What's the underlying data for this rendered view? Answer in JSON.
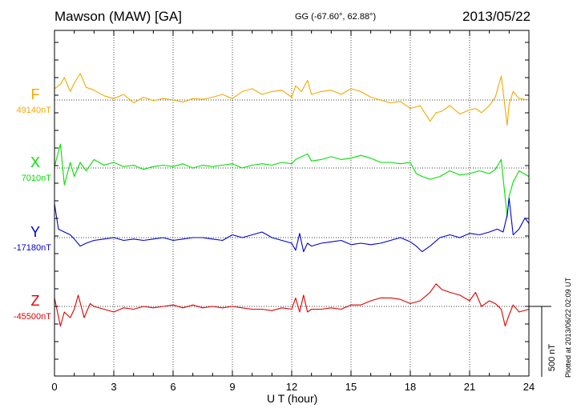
{
  "header": {
    "title": "Mawson (MAW)  [GA]",
    "coords": "GG (-67.60°,  62.88°)",
    "date": "2013/05/22"
  },
  "footer": {
    "plotted_note": "Plotted at 2013/06/22 02:09 UT"
  },
  "colors": {
    "F": "#f5a800",
    "X": "#00e000",
    "Y": "#0000d0",
    "Z": "#e00000",
    "axis": "#000000",
    "grid": "#000000"
  },
  "chart_data": {
    "type": "line",
    "title": "Mawson (MAW)  [GA]",
    "xlabel": "U T (hour)",
    "ylabel": "",
    "xlim": [
      0,
      24
    ],
    "x_ticks": [
      0,
      3,
      6,
      9,
      12,
      15,
      18,
      21,
      24
    ],
    "scale_label": "500 nT",
    "scale_nT": 500,
    "grid": "dotted",
    "series": [
      {
        "name": "F",
        "baseline_label": "49140nT",
        "x": [
          0,
          0.3,
          0.5,
          0.8,
          1.0,
          1.3,
          1.6,
          2.0,
          2.5,
          3.0,
          3.5,
          4.0,
          4.5,
          5.0,
          5.5,
          6.0,
          6.5,
          7.0,
          7.5,
          8.0,
          8.5,
          9.0,
          9.5,
          10.0,
          10.5,
          11.0,
          11.5,
          12.0,
          12.2,
          12.5,
          12.8,
          13.0,
          13.5,
          14.0,
          14.5,
          15.0,
          15.5,
          16.0,
          16.5,
          17.0,
          17.5,
          18.0,
          18.5,
          19.0,
          19.3,
          19.6,
          20.0,
          20.5,
          21.0,
          21.3,
          21.6,
          22.0,
          22.3,
          22.6,
          22.9,
          23.0,
          23.2,
          23.5,
          24.0
        ],
        "values": [
          80,
          110,
          160,
          60,
          120,
          190,
          90,
          70,
          30,
          10,
          40,
          -20,
          20,
          -5,
          10,
          0,
          -15,
          10,
          5,
          20,
          40,
          10,
          60,
          80,
          40,
          60,
          70,
          20,
          100,
          60,
          140,
          40,
          60,
          70,
          40,
          80,
          60,
          20,
          0,
          -20,
          -10,
          -60,
          -40,
          -150,
          -90,
          -80,
          -40,
          -100,
          -70,
          -60,
          -90,
          -40,
          20,
          170,
          -180,
          -30,
          60,
          10,
          0
        ]
      },
      {
        "name": "X",
        "baseline_label": "7010nT",
        "x": [
          0,
          0.3,
          0.5,
          0.8,
          1.0,
          1.3,
          1.6,
          2.0,
          2.5,
          3.0,
          3.5,
          4.0,
          4.5,
          5.0,
          5.5,
          6.0,
          6.5,
          7.0,
          7.5,
          8.0,
          8.5,
          9.0,
          9.5,
          10.0,
          10.5,
          11.0,
          11.5,
          12.0,
          12.2,
          12.5,
          12.8,
          13.0,
          13.5,
          14.0,
          14.5,
          15.0,
          15.5,
          16.0,
          16.5,
          17.0,
          17.5,
          18.0,
          18.3,
          18.6,
          19.0,
          19.5,
          20.0,
          20.5,
          21.0,
          21.5,
          22.0,
          22.3,
          22.6,
          22.9,
          23.0,
          23.2,
          23.5,
          24.0
        ],
        "values": [
          10,
          170,
          -120,
          40,
          -60,
          40,
          -20,
          60,
          20,
          40,
          10,
          20,
          -10,
          10,
          20,
          10,
          30,
          0,
          20,
          10,
          20,
          30,
          0,
          20,
          30,
          20,
          40,
          30,
          60,
          80,
          100,
          50,
          60,
          80,
          60,
          70,
          90,
          70,
          40,
          40,
          30,
          40,
          -40,
          -60,
          -80,
          -60,
          -20,
          -50,
          -40,
          -20,
          -40,
          -10,
          60,
          -350,
          -200,
          -100,
          -20,
          -60
        ]
      },
      {
        "name": "Y",
        "baseline_label": "-17180nT",
        "x": [
          0,
          0.2,
          0.5,
          0.8,
          1.0,
          1.3,
          1.6,
          2.0,
          2.5,
          3.0,
          3.5,
          4.0,
          4.5,
          5.0,
          5.5,
          6.0,
          6.5,
          7.0,
          7.5,
          8.0,
          8.5,
          9.0,
          9.5,
          10.0,
          10.5,
          11.0,
          11.5,
          12.0,
          12.2,
          12.4,
          12.6,
          12.8,
          13.0,
          13.5,
          14.0,
          14.5,
          15.0,
          15.5,
          16.0,
          16.5,
          17.0,
          17.5,
          18.0,
          18.3,
          18.6,
          19.0,
          19.5,
          20.0,
          20.5,
          21.0,
          21.5,
          22.0,
          22.4,
          22.7,
          22.9,
          23.0,
          23.2,
          23.5,
          23.8,
          24.0
        ],
        "values": [
          240,
          60,
          40,
          20,
          -10,
          -60,
          -40,
          -20,
          -10,
          0,
          -20,
          -10,
          -20,
          -10,
          0,
          -20,
          -10,
          0,
          0,
          -10,
          -20,
          20,
          0,
          20,
          40,
          0,
          -20,
          -40,
          -90,
          30,
          -100,
          -40,
          -60,
          -40,
          -30,
          -20,
          -50,
          -40,
          -50,
          -40,
          -20,
          0,
          -30,
          -60,
          -100,
          -60,
          0,
          20,
          0,
          30,
          20,
          40,
          60,
          40,
          160,
          280,
          20,
          60,
          140,
          100
        ]
      },
      {
        "name": "Z",
        "baseline_label": "-45500nT",
        "x": [
          0,
          0.3,
          0.5,
          0.8,
          1.0,
          1.2,
          1.5,
          1.8,
          2.0,
          2.5,
          3.0,
          3.5,
          4.0,
          4.5,
          5.0,
          5.5,
          6.0,
          6.5,
          7.0,
          7.5,
          8.0,
          8.5,
          9.0,
          9.5,
          10.0,
          10.5,
          11.0,
          11.5,
          12.0,
          12.2,
          12.4,
          12.6,
          12.8,
          13.0,
          13.5,
          14.0,
          14.5,
          15.0,
          15.5,
          16.0,
          16.5,
          17.0,
          17.5,
          18.0,
          18.5,
          19.0,
          19.3,
          19.6,
          20.0,
          20.5,
          21.0,
          21.3,
          21.6,
          22.0,
          22.3,
          22.6,
          22.8,
          23.0,
          23.2,
          23.5,
          24.0
        ],
        "values": [
          60,
          -140,
          -40,
          -80,
          -20,
          80,
          -80,
          20,
          0,
          -20,
          -40,
          -10,
          -20,
          0,
          -10,
          0,
          10,
          -10,
          10,
          -10,
          0,
          -10,
          0,
          -10,
          -20,
          -20,
          -30,
          -10,
          -20,
          60,
          -40,
          80,
          -40,
          -20,
          -20,
          -10,
          -20,
          10,
          10,
          40,
          60,
          60,
          50,
          20,
          40,
          100,
          160,
          120,
          100,
          80,
          40,
          100,
          0,
          40,
          20,
          -20,
          -140,
          -60,
          10,
          -40,
          -20
        ]
      }
    ]
  }
}
